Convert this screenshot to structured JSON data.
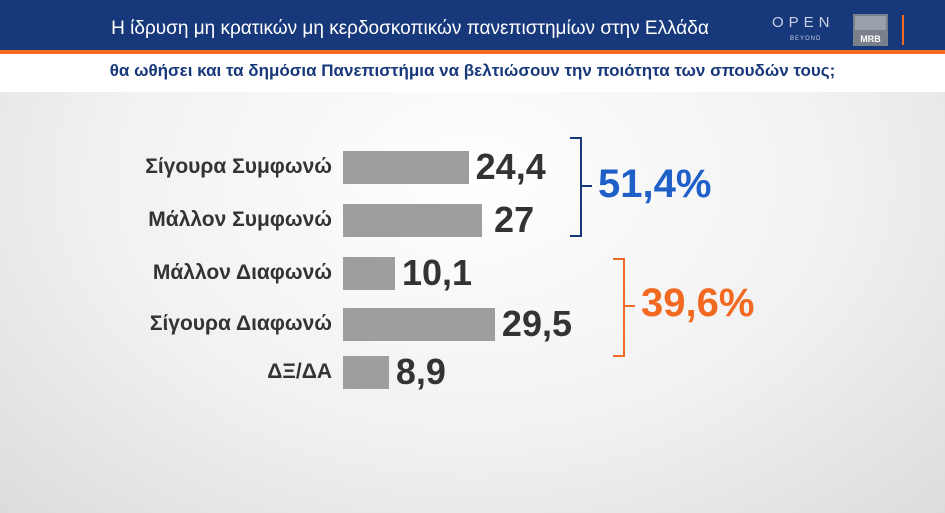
{
  "header": {
    "title": "Η ίδρυση μη κρατικών μη κερδοσκοπικών πανεπιστημίων στην Ελλάδα",
    "logo_open": "OPEN",
    "logo_beyond": "BEYOND",
    "logo_mrb": "MRB"
  },
  "subtitle": "θα ωθήσει και τα δημόσια Πανεπιστήμια να βελτιώσουν την ποιότητα των σπουδών τους;",
  "colors": {
    "header": "#17387a",
    "accent": "#f26a21",
    "bar": "#9e9e9e",
    "agree": "#1f5fc8",
    "disagree": "#f26a21"
  },
  "chart_data": {
    "type": "bar",
    "orientation": "horizontal",
    "categories": [
      "Σίγουρα Συμφωνώ",
      "Μάλλον Συμφωνώ",
      "Μάλλον Διαφωνώ",
      "Σίγουρα Διαφωνώ",
      "ΔΞ/ΔΑ"
    ],
    "values": [
      24.4,
      27,
      10.1,
      29.5,
      8.9
    ],
    "value_labels": [
      "24,4",
      "27",
      "10,1",
      "29,5",
      "8,9"
    ],
    "groups": [
      {
        "label": "51,4%",
        "members": [
          0,
          1
        ],
        "color": "#1f5fc8"
      },
      {
        "label": "39,6%",
        "members": [
          2,
          3
        ],
        "color": "#f26a21"
      }
    ]
  }
}
